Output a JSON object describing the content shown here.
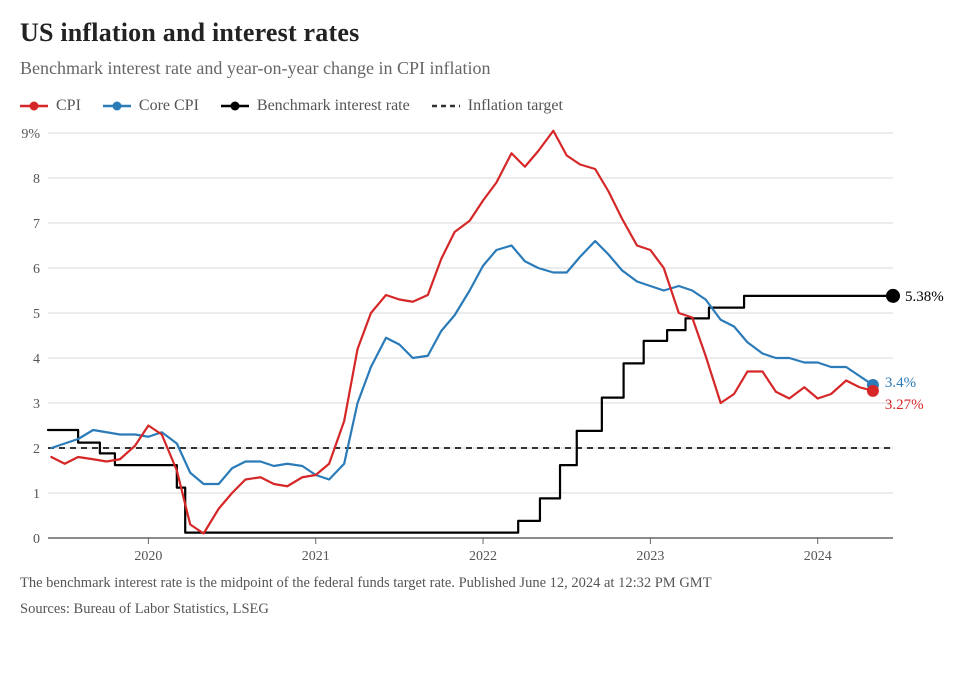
{
  "title": "US inflation and interest rates",
  "subtitle": "Benchmark interest rate and year-on-year change in CPI inflation",
  "legend": {
    "cpi": "CPI",
    "core": "Core CPI",
    "rate": "Benchmark interest rate",
    "target": "Inflation target"
  },
  "footnote_line1": "The benchmark interest rate is the midpoint of the federal funds target rate. Published June 12, 2024 at 12:32 PM GMT",
  "footnote_line2": "Sources: Bureau of Labor Statistics, LSEG",
  "chart": {
    "type": "line",
    "background_color": "#ffffff",
    "gridline_color": "#d9d9d9",
    "baseline_color": "#666666",
    "text_color": "#555555",
    "tick_fontsize": 14,
    "title_fontsize": 26,
    "subtitle_fontsize": 18,
    "legend_fontsize": 16,
    "line_width": 2.2,
    "end_marker_radius": 6,
    "xlim": [
      2019.4,
      2024.45
    ],
    "ylim": [
      0,
      9
    ],
    "ytick_step": 1,
    "y_top_label": "9%",
    "x_ticks": [
      2020,
      2021,
      2022,
      2023,
      2024
    ],
    "inflation_target": 2.0,
    "series": {
      "cpi": {
        "color": "#d62728",
        "end_value": 3.27,
        "end_label": "3.27%",
        "points": [
          [
            2019.42,
            1.8
          ],
          [
            2019.5,
            1.65
          ],
          [
            2019.58,
            1.8
          ],
          [
            2019.67,
            1.75
          ],
          [
            2019.75,
            1.7
          ],
          [
            2019.83,
            1.75
          ],
          [
            2019.92,
            2.05
          ],
          [
            2020.0,
            2.5
          ],
          [
            2020.08,
            2.3
          ],
          [
            2020.17,
            1.5
          ],
          [
            2020.25,
            0.3
          ],
          [
            2020.33,
            0.1
          ],
          [
            2020.42,
            0.65
          ],
          [
            2020.5,
            1.0
          ],
          [
            2020.58,
            1.3
          ],
          [
            2020.67,
            1.35
          ],
          [
            2020.75,
            1.2
          ],
          [
            2020.83,
            1.15
          ],
          [
            2020.92,
            1.35
          ],
          [
            2021.0,
            1.4
          ],
          [
            2021.08,
            1.65
          ],
          [
            2021.17,
            2.6
          ],
          [
            2021.25,
            4.2
          ],
          [
            2021.33,
            5.0
          ],
          [
            2021.42,
            5.4
          ],
          [
            2021.5,
            5.3
          ],
          [
            2021.58,
            5.25
          ],
          [
            2021.67,
            5.4
          ],
          [
            2021.75,
            6.2
          ],
          [
            2021.83,
            6.8
          ],
          [
            2021.92,
            7.05
          ],
          [
            2022.0,
            7.5
          ],
          [
            2022.08,
            7.9
          ],
          [
            2022.17,
            8.55
          ],
          [
            2022.25,
            8.25
          ],
          [
            2022.33,
            8.6
          ],
          [
            2022.42,
            9.05
          ],
          [
            2022.5,
            8.5
          ],
          [
            2022.58,
            8.3
          ],
          [
            2022.67,
            8.2
          ],
          [
            2022.75,
            7.7
          ],
          [
            2022.83,
            7.1
          ],
          [
            2022.92,
            6.5
          ],
          [
            2023.0,
            6.4
          ],
          [
            2023.08,
            6.0
          ],
          [
            2023.17,
            5.0
          ],
          [
            2023.25,
            4.9
          ],
          [
            2023.33,
            4.05
          ],
          [
            2023.42,
            3.0
          ],
          [
            2023.5,
            3.2
          ],
          [
            2023.58,
            3.7
          ],
          [
            2023.67,
            3.7
          ],
          [
            2023.75,
            3.25
          ],
          [
            2023.83,
            3.1
          ],
          [
            2023.92,
            3.35
          ],
          [
            2024.0,
            3.1
          ],
          [
            2024.08,
            3.2
          ],
          [
            2024.17,
            3.5
          ],
          [
            2024.25,
            3.35
          ],
          [
            2024.33,
            3.27
          ]
        ]
      },
      "core": {
        "color": "#2b7bb9",
        "end_value": 3.4,
        "end_label": "3.4%",
        "points": [
          [
            2019.42,
            2.0
          ],
          [
            2019.5,
            2.1
          ],
          [
            2019.58,
            2.2
          ],
          [
            2019.67,
            2.4
          ],
          [
            2019.75,
            2.35
          ],
          [
            2019.83,
            2.3
          ],
          [
            2019.92,
            2.3
          ],
          [
            2020.0,
            2.25
          ],
          [
            2020.08,
            2.35
          ],
          [
            2020.17,
            2.1
          ],
          [
            2020.25,
            1.45
          ],
          [
            2020.33,
            1.2
          ],
          [
            2020.42,
            1.2
          ],
          [
            2020.5,
            1.55
          ],
          [
            2020.58,
            1.7
          ],
          [
            2020.67,
            1.7
          ],
          [
            2020.75,
            1.6
          ],
          [
            2020.83,
            1.65
          ],
          [
            2020.92,
            1.6
          ],
          [
            2021.0,
            1.4
          ],
          [
            2021.08,
            1.3
          ],
          [
            2021.17,
            1.65
          ],
          [
            2021.25,
            3.0
          ],
          [
            2021.33,
            3.8
          ],
          [
            2021.42,
            4.45
          ],
          [
            2021.5,
            4.3
          ],
          [
            2021.58,
            4.0
          ],
          [
            2021.67,
            4.05
          ],
          [
            2021.75,
            4.6
          ],
          [
            2021.83,
            4.95
          ],
          [
            2021.92,
            5.5
          ],
          [
            2022.0,
            6.05
          ],
          [
            2022.08,
            6.4
          ],
          [
            2022.17,
            6.5
          ],
          [
            2022.25,
            6.15
          ],
          [
            2022.33,
            6.0
          ],
          [
            2022.42,
            5.9
          ],
          [
            2022.5,
            5.9
          ],
          [
            2022.58,
            6.25
          ],
          [
            2022.67,
            6.6
          ],
          [
            2022.75,
            6.3
          ],
          [
            2022.83,
            5.95
          ],
          [
            2022.92,
            5.7
          ],
          [
            2023.0,
            5.6
          ],
          [
            2023.08,
            5.5
          ],
          [
            2023.17,
            5.6
          ],
          [
            2023.25,
            5.5
          ],
          [
            2023.33,
            5.3
          ],
          [
            2023.42,
            4.85
          ],
          [
            2023.5,
            4.7
          ],
          [
            2023.58,
            4.35
          ],
          [
            2023.67,
            4.1
          ],
          [
            2023.75,
            4.0
          ],
          [
            2023.83,
            4.0
          ],
          [
            2023.92,
            3.9
          ],
          [
            2024.0,
            3.9
          ],
          [
            2024.08,
            3.8
          ],
          [
            2024.17,
            3.8
          ],
          [
            2024.25,
            3.6
          ],
          [
            2024.33,
            3.4
          ]
        ]
      },
      "rate": {
        "color": "#000000",
        "end_value": 5.38,
        "end_label": "5.38%",
        "steps": [
          [
            2019.4,
            2.4
          ],
          [
            2019.58,
            2.12
          ],
          [
            2019.71,
            1.88
          ],
          [
            2019.8,
            1.62
          ],
          [
            2020.17,
            1.12
          ],
          [
            2020.22,
            0.12
          ],
          [
            2022.21,
            0.38
          ],
          [
            2022.34,
            0.88
          ],
          [
            2022.46,
            1.62
          ],
          [
            2022.56,
            2.38
          ],
          [
            2022.71,
            3.12
          ],
          [
            2022.84,
            3.88
          ],
          [
            2022.96,
            4.38
          ],
          [
            2023.1,
            4.62
          ],
          [
            2023.21,
            4.88
          ],
          [
            2023.35,
            5.12
          ],
          [
            2023.56,
            5.38
          ],
          [
            2024.45,
            5.38
          ]
        ]
      },
      "target": {
        "color": "#333333",
        "dash": "6,5",
        "value": 2.0
      }
    }
  }
}
